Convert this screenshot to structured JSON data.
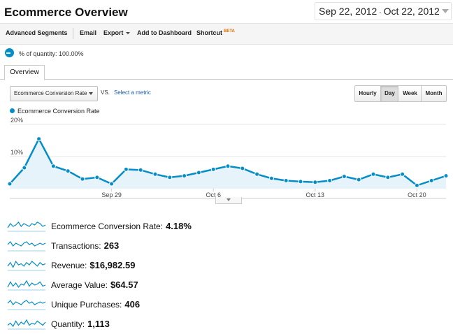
{
  "header": {
    "title": "Ecommerce Overview",
    "date_start": "Sep 22, 2012",
    "date_sep": "-",
    "date_end": "Oct 22, 2012"
  },
  "toolbar": {
    "advanced_segments": "Advanced Segments",
    "email": "Email",
    "export": "Export",
    "add_to_dashboard": "Add to Dashboard",
    "shortcut": "Shortcut",
    "beta": "BETA"
  },
  "segment": {
    "label": "% of quantity: 100.00%"
  },
  "tabs": [
    {
      "label": "Overview"
    }
  ],
  "controls": {
    "metric_select": "Ecommerce Conversion Rate",
    "vs": "VS.",
    "select_metric": "Select a metric",
    "granularity": [
      "Hourly",
      "Day",
      "Week",
      "Month"
    ],
    "active_granularity": "Day"
  },
  "colors": {
    "accent": "#058dc7",
    "fill": "#e6f3fa"
  },
  "chart_data": {
    "type": "area",
    "series": [
      {
        "name": "Ecommerce Conversion Rate",
        "values": [
          1.5,
          6.5,
          15.5,
          7.0,
          5.5,
          3.0,
          3.5,
          1.5,
          6.0,
          5.8,
          4.5,
          3.5,
          4.0,
          5.0,
          6.0,
          7.0,
          6.3,
          4.5,
          3.2,
          2.5,
          2.2,
          2.0,
          2.5,
          3.8,
          2.8,
          4.5,
          3.5,
          4.5,
          1.0,
          2.5,
          4.0
        ]
      }
    ],
    "x_range": [
      "Sep 22",
      "Oct 22"
    ],
    "x_ticks": [
      "Sep 29",
      "Oct 6",
      "Oct 13",
      "Oct 20"
    ],
    "y_ticks": [
      "20%",
      "10%"
    ],
    "ylim": [
      0,
      20
    ],
    "grid": true
  },
  "metrics": [
    {
      "label": "Ecommerce Conversion Rate:",
      "value": "4.18%",
      "spark": [
        2,
        5,
        3,
        4,
        6,
        3,
        5,
        4,
        3,
        5,
        4,
        6,
        5,
        3,
        4
      ]
    },
    {
      "label": "Transactions:",
      "value": "263",
      "spark": [
        4,
        6,
        3,
        5,
        4,
        3,
        5,
        6,
        4,
        5,
        3,
        4,
        5,
        4,
        5
      ]
    },
    {
      "label": "Revenue:",
      "value": "$16,982.59",
      "spark": [
        3,
        6,
        2,
        7,
        4,
        5,
        3,
        6,
        4,
        7,
        5,
        3,
        6,
        4,
        5
      ]
    },
    {
      "label": "Average Value:",
      "value": "$64.57",
      "spark": [
        2,
        7,
        3,
        6,
        2,
        5,
        4,
        8,
        3,
        6,
        4,
        5,
        7,
        3,
        4
      ]
    },
    {
      "label": "Unique Purchases:",
      "value": "406",
      "spark": [
        4,
        6,
        3,
        5,
        4,
        3,
        5,
        6,
        4,
        5,
        3,
        4,
        5,
        4,
        5
      ]
    },
    {
      "label": "Quantity:",
      "value": "1,113",
      "spark": [
        3,
        5,
        2,
        7,
        3,
        6,
        4,
        8,
        3,
        5,
        4,
        7,
        5,
        3,
        6
      ]
    }
  ]
}
